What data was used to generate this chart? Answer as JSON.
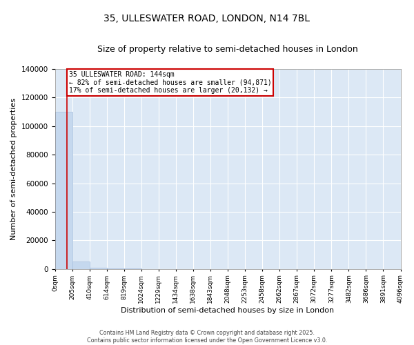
{
  "title": "35, ULLESWATER ROAD, LONDON, N14 7BL",
  "subtitle": "Size of property relative to semi-detached houses in London",
  "xlabel": "Distribution of semi-detached houses by size in London",
  "ylabel": "Number of semi-detached properties",
  "annotation_line1": "35 ULLESWATER ROAD: 144sqm",
  "annotation_line2": "← 82% of semi-detached houses are smaller (94,871)",
  "annotation_line3": "17% of semi-detached houses are larger (20,132) →",
  "footer": "Contains HM Land Registry data © Crown copyright and database right 2025.\nContains public sector information licensed under the Open Government Licence v3.0.",
  "property_size_sqm": 144,
  "bar_edges": [
    0,
    205,
    410,
    614,
    819,
    1024,
    1229,
    1434,
    1638,
    1843,
    2048,
    2253,
    2458,
    2662,
    2867,
    3072,
    3277,
    3482,
    3686,
    3891,
    4096
  ],
  "bar_heights": [
    110000,
    5200,
    800,
    300,
    150,
    80,
    50,
    30,
    20,
    15,
    12,
    10,
    8,
    7,
    6,
    5,
    4,
    3,
    3,
    2
  ],
  "bar_color": "#c5d8ee",
  "bar_edge_color": "#a8c0de",
  "vline_color": "#cc0000",
  "vline_x": 144,
  "ylim": [
    0,
    140000
  ],
  "yticks": [
    0,
    20000,
    40000,
    60000,
    80000,
    100000,
    120000,
    140000
  ],
  "plot_bg_color": "#dce8f5",
  "annotation_box_color": "#cc0000",
  "title_fontsize": 10,
  "subtitle_fontsize": 9,
  "axis_label_fontsize": 8,
  "tick_label_fontsize": 6.5
}
